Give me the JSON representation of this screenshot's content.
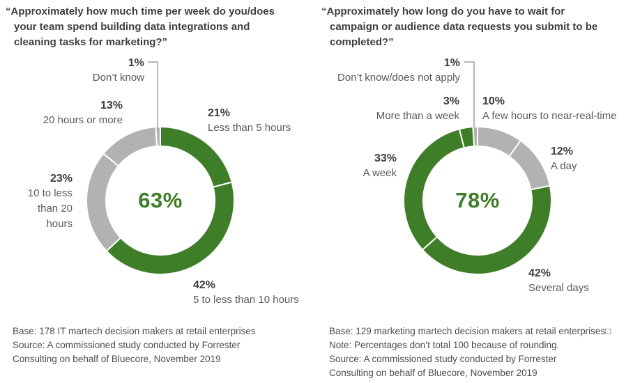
{
  "colors": {
    "green": "#3F7E28",
    "gray": "#B2B2B1",
    "center_label_text": "#3F7E28",
    "pct_text": "#3D3D3D",
    "category_text": "#5A5A5A",
    "title_text": "#3F3F3F",
    "footnote_text": "#4C4C4C",
    "leader_line": "#B5B5B5",
    "background": "#FFFFFF"
  },
  "chart_data": [
    {
      "type": "pie",
      "variant": "donut",
      "title": "“Approximately how much time per week do you/does\nyour team spend building data integrations and\ncleaning tasks for marketing?”",
      "center_label": "63%",
      "start_angle_deg": 0,
      "direction": "clockwise",
      "legend_position": "around",
      "slices": [
        {
          "label": "Less than 5 hours",
          "pct_label": "21%",
          "value": 21,
          "color": "green"
        },
        {
          "label": "5 to less than 10 hours",
          "pct_label": "42%",
          "value": 42,
          "color": "green"
        },
        {
          "label": "10 to less than 20 hours",
          "pct_label": "23%",
          "value": 23,
          "color": "gray"
        },
        {
          "label": "20 hours or more",
          "pct_label": "13%",
          "value": 13,
          "color": "gray"
        },
        {
          "label": "Don’t know",
          "pct_label": "1%",
          "value": 1,
          "color": "gray"
        }
      ],
      "footnote": "Base: 178 IT martech decision makers at retail enterprises\nSource: A commissioned study conducted by Forrester\nConsulting on behalf of Bluecore, November 2019"
    },
    {
      "type": "pie",
      "variant": "donut",
      "title": "“Approximately how long do you have to wait for\ncampaign or audience data requests you submit to be\ncompleted?”",
      "center_label": "78%",
      "start_angle_deg": 0,
      "direction": "clockwise",
      "legend_position": "around",
      "slices": [
        {
          "label": "A few hours to near-real-time",
          "pct_label": "10%",
          "value": 10,
          "color": "gray"
        },
        {
          "label": "A day",
          "pct_label": "12%",
          "value": 12,
          "color": "gray"
        },
        {
          "label": "Several days",
          "pct_label": "42%",
          "value": 42,
          "color": "green"
        },
        {
          "label": "A week",
          "pct_label": "33%",
          "value": 33,
          "color": "green"
        },
        {
          "label": "More than a week",
          "pct_label": "3%",
          "value": 3,
          "color": "green"
        },
        {
          "label": "Don’t know/does not apply",
          "pct_label": "1%",
          "value": 1,
          "color": "gray"
        }
      ],
      "footnote": "Base: 129 marketing martech decision makers at retail enterprises□\nNote: Percentages don’t total 100 because of rounding.\nSource: A commissioned study conducted by Forrester\nConsulting on behalf of Bluecore, November 2019"
    }
  ]
}
